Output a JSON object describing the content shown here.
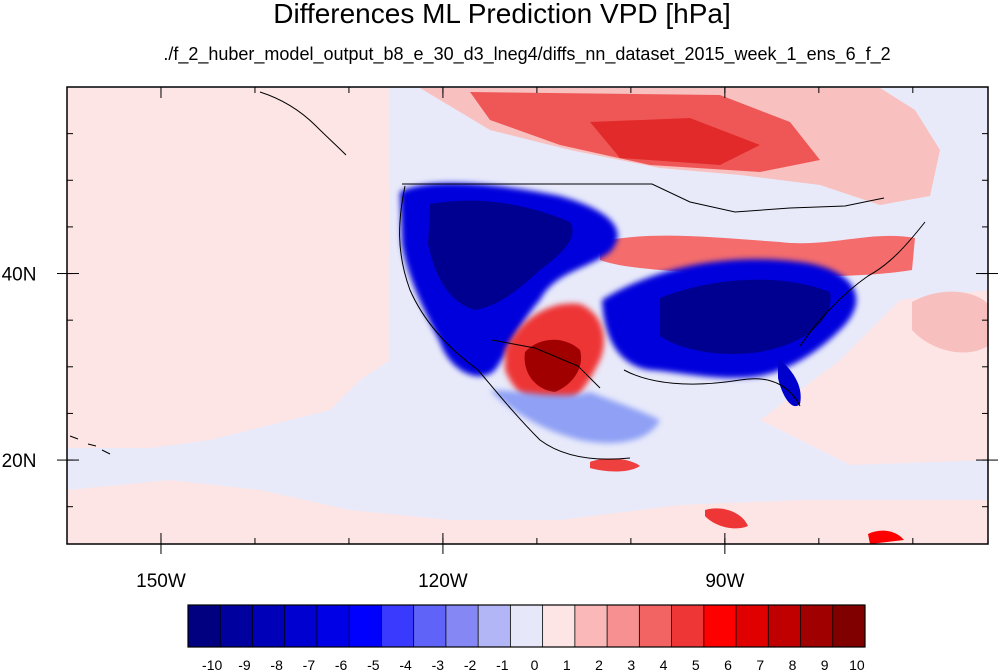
{
  "title": "Differences ML Prediction VPD [hPa]",
  "subtitle": "./f_2_huber_model_output_b8_e_30_d3_lneg4/diffs_nn_dataset_2015_week_1_ens_6_f_2",
  "map": {
    "lon_range": [
      -160,
      -62
    ],
    "lat_range": [
      11,
      60
    ],
    "lon_ticks": [
      {
        "value": -150,
        "label": "150W"
      },
      {
        "value": -120,
        "label": "120W"
      },
      {
        "value": -90,
        "label": "90W"
      }
    ],
    "lat_ticks": [
      {
        "value": 40,
        "label": "40N"
      },
      {
        "value": 20,
        "label": "20N"
      }
    ],
    "colors": {
      "strong_negative": "#00008b",
      "negative": "#0000ee",
      "weak_negative": "#6f7ff0",
      "near_zero_negative": "#e6e8fa",
      "near_zero_positive": "#fde5e5",
      "weak_positive": "#f79b9b",
      "positive": "#e82828",
      "strong_positive": "#8b0000"
    }
  },
  "colorbar": {
    "labels": [
      "-10",
      "-9",
      "-8",
      "-7",
      "-6",
      "-5",
      "-4",
      "-3",
      "-2",
      "-1",
      "0",
      "1",
      "2",
      "3",
      "4",
      "5",
      "6",
      "7",
      "8",
      "9",
      "10"
    ],
    "colors": [
      "#000080",
      "#00009e",
      "#0000b8",
      "#0000d0",
      "#0000e6",
      "#0000ff",
      "#3a3aff",
      "#5f63f7",
      "#8587f4",
      "#b3b6f6",
      "#e6e8fa",
      "#fde5e5",
      "#fbb8b8",
      "#f79090",
      "#f26464",
      "#ee3636",
      "#ff0000",
      "#e00000",
      "#c00000",
      "#a00000",
      "#800000"
    ]
  }
}
